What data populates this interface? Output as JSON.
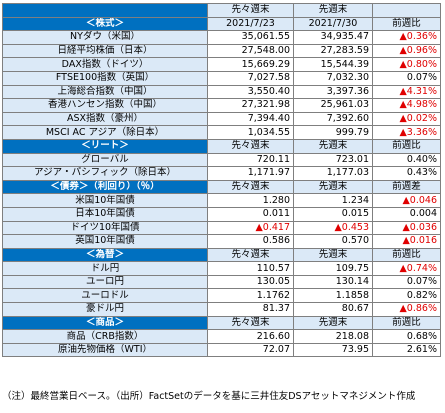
{
  "negative_color": "#e00000",
  "sections": [
    {
      "title": "＜株式＞",
      "headers_top": [
        "先々週末",
        "先週末"
      ],
      "headers": [
        "2021/7/23",
        "2021/7/30",
        "前週比"
      ],
      "rows": [
        {
          "label": "NYダウ（米国）",
          "cells": [
            "35,061.55",
            "34,935.47",
            "▲0.36%"
          ],
          "red": [
            2
          ]
        },
        {
          "label": "日経平均株価（日本）",
          "cells": [
            "27,548.00",
            "27,283.59",
            "▲0.96%"
          ],
          "red": [
            2
          ]
        },
        {
          "label": "DAX指数（ドイツ）",
          "cells": [
            "15,669.29",
            "15,544.39",
            "▲0.80%"
          ],
          "red": [
            2
          ]
        },
        {
          "label": "FTSE100指数（英国）",
          "cells": [
            "7,027.58",
            "7,032.30",
            "0.07%"
          ],
          "red": []
        },
        {
          "label": "上海総合指数（中国）",
          "cells": [
            "3,550.40",
            "3,397.36",
            "▲4.31%"
          ],
          "red": [
            2
          ]
        },
        {
          "label": "香港ハンセン指数（中国）",
          "cells": [
            "27,321.98",
            "25,961.03",
            "▲4.98%"
          ],
          "red": [
            2
          ]
        },
        {
          "label": "ASX指数（豪州）",
          "cells": [
            "7,394.40",
            "7,392.60",
            "▲0.02%"
          ],
          "red": [
            2
          ]
        },
        {
          "label": "MSCI AC アジア（除日本）",
          "cells": [
            "1,034.55",
            "999.79",
            "▲3.36%"
          ],
          "red": [
            2
          ]
        }
      ]
    },
    {
      "title": "＜リート＞",
      "headers": [
        "先々週末",
        "先週末",
        "前週比"
      ],
      "rows": [
        {
          "label": "グローバル",
          "cells": [
            "720.11",
            "723.01",
            "0.40%"
          ],
          "red": []
        },
        {
          "label": "アジア・パシフィック（除日本）",
          "cells": [
            "1,171.97",
            "1,177.03",
            "0.43%"
          ],
          "red": []
        }
      ]
    },
    {
      "title": "＜債券＞（利回り）（％）",
      "headers": [
        "先々週末",
        "先週末",
        "前週差"
      ],
      "rows": [
        {
          "label": "米国10年国債",
          "cells": [
            "1.280",
            "1.234",
            "▲0.046"
          ],
          "red": [
            2
          ]
        },
        {
          "label": "日本10年国債",
          "cells": [
            "0.011",
            "0.015",
            "0.004"
          ],
          "red": []
        },
        {
          "label": "ドイツ10年国債",
          "cells": [
            "▲0.417",
            "▲0.453",
            "▲0.036"
          ],
          "red": [
            0,
            1,
            2
          ]
        },
        {
          "label": "英国10年国債",
          "cells": [
            "0.586",
            "0.570",
            "▲0.016"
          ],
          "red": [
            2
          ]
        }
      ]
    },
    {
      "title": "＜為替＞",
      "headers": [
        "先々週末",
        "先週末",
        "前週比"
      ],
      "rows": [
        {
          "label": "ドル円",
          "cells": [
            "110.57",
            "109.75",
            "▲0.74%"
          ],
          "red": [
            2
          ]
        },
        {
          "label": "ユーロ円",
          "cells": [
            "130.05",
            "130.14",
            "0.07%"
          ],
          "red": []
        },
        {
          "label": "ユーロドル",
          "cells": [
            "1.1762",
            "1.1858",
            "0.82%"
          ],
          "red": []
        },
        {
          "label": "豪ドル円",
          "cells": [
            "81.37",
            "80.67",
            "▲0.86%"
          ],
          "red": [
            2
          ]
        }
      ]
    },
    {
      "title": "＜商品＞",
      "headers": [
        "先々週末",
        "先週末",
        "前週比"
      ],
      "rows": [
        {
          "label": "商品（CRB指数）",
          "cells": [
            "216.60",
            "218.08",
            "0.68%"
          ],
          "red": []
        },
        {
          "label": "原油先物価格（WTI）",
          "cells": [
            "72.07",
            "73.95",
            "2.61%"
          ],
          "red": []
        }
      ]
    }
  ],
  "footnote": "（注）最終営業日ベース。（出所）FactSetのデータを基に三井住友DSアセットマネジメント作成"
}
